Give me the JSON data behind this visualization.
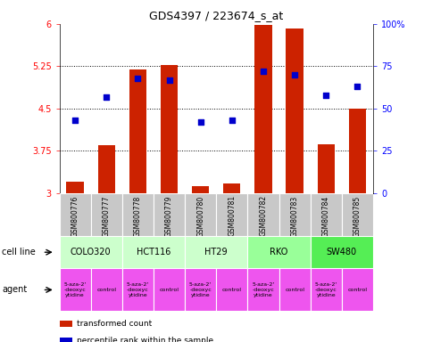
{
  "title": "GDS4397 / 223674_s_at",
  "samples": [
    "GSM800776",
    "GSM800777",
    "GSM800778",
    "GSM800779",
    "GSM800780",
    "GSM800781",
    "GSM800782",
    "GSM800783",
    "GSM800784",
    "GSM800785"
  ],
  "bar_values": [
    3.2,
    3.85,
    5.2,
    5.27,
    3.12,
    3.17,
    5.98,
    5.92,
    3.87,
    4.5
  ],
  "dot_values": [
    43,
    57,
    68,
    67,
    42,
    43,
    72,
    70,
    58,
    63
  ],
  "ymin": 3.0,
  "ymax": 6.0,
  "yticks": [
    3.0,
    3.75,
    4.5,
    5.25,
    6.0
  ],
  "ytick_labels": [
    "3",
    "3.75",
    "4.5",
    "5.25",
    "6"
  ],
  "yright_ticks": [
    0,
    25,
    50,
    75,
    100
  ],
  "yright_labels": [
    "0",
    "25",
    "50",
    "75",
    "100%"
  ],
  "bar_color": "#cc2200",
  "dot_color": "#0000cc",
  "bar_bottom": 3.0,
  "gridlines": [
    3.75,
    4.5,
    5.25
  ],
  "cell_line_data": [
    {
      "label": "COLO320",
      "start": 0,
      "end": 2,
      "color": "#ccffcc"
    },
    {
      "label": "HCT116",
      "start": 2,
      "end": 4,
      "color": "#ccffcc"
    },
    {
      "label": "HT29",
      "start": 4,
      "end": 6,
      "color": "#ccffcc"
    },
    {
      "label": "RKO",
      "start": 6,
      "end": 8,
      "color": "#99ff99"
    },
    {
      "label": "SW480",
      "start": 8,
      "end": 10,
      "color": "#55ee55"
    }
  ],
  "agent_data": [
    {
      "label": "5-aza-2'\n-deoxyc\nytidine",
      "start": 0,
      "end": 1,
      "color": "#ee55ee"
    },
    {
      "label": "control",
      "start": 1,
      "end": 2,
      "color": "#ee55ee"
    },
    {
      "label": "5-aza-2'\n-deoxyc\nytidine",
      "start": 2,
      "end": 3,
      "color": "#ee55ee"
    },
    {
      "label": "control",
      "start": 3,
      "end": 4,
      "color": "#ee55ee"
    },
    {
      "label": "5-aza-2'\n-deoxyc\nytidine",
      "start": 4,
      "end": 5,
      "color": "#ee55ee"
    },
    {
      "label": "control",
      "start": 5,
      "end": 6,
      "color": "#ee55ee"
    },
    {
      "label": "5-aza-2'\n-deoxyc\nytidine",
      "start": 6,
      "end": 7,
      "color": "#ee55ee"
    },
    {
      "label": "control",
      "start": 7,
      "end": 8,
      "color": "#ee55ee"
    },
    {
      "label": "5-aza-2'\n-deoxyc\nytidine",
      "start": 8,
      "end": 9,
      "color": "#ee55ee"
    },
    {
      "label": "control",
      "start": 9,
      "end": 10,
      "color": "#ee55ee"
    }
  ],
  "sample_bg_color": "#c8c8c8",
  "legend_items": [
    {
      "label": "transformed count",
      "color": "#cc2200"
    },
    {
      "label": "percentile rank within the sample",
      "color": "#0000cc"
    }
  ],
  "cell_line_label": "cell line",
  "agent_label": "agent"
}
